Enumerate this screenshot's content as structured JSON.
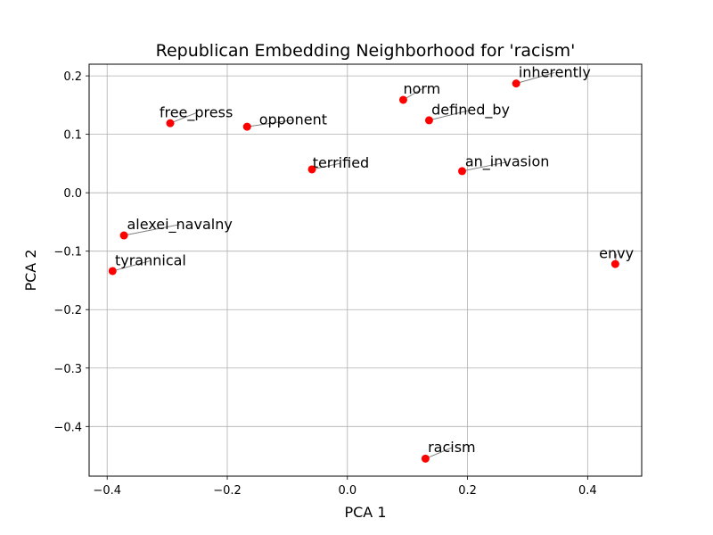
{
  "chart_data": {
    "type": "scatter",
    "title": "Republican Embedding Neighborhood for 'racism'",
    "xlabel": "PCA 1",
    "ylabel": "PCA 2",
    "xlim": [
      -0.43,
      0.49
    ],
    "ylim": [
      -0.485,
      0.22
    ],
    "xticks": [
      -0.4,
      -0.2,
      0.0,
      0.2,
      0.4
    ],
    "xtick_labels": [
      "−0.4",
      "−0.2",
      "0.0",
      "0.2",
      "0.4"
    ],
    "yticks": [
      0.2,
      0.1,
      0.0,
      -0.1,
      -0.2,
      -0.3,
      -0.4
    ],
    "ytick_labels": [
      "0.2",
      "0.1",
      "0.0",
      "−0.1",
      "−0.2",
      "−0.3",
      "−0.4"
    ],
    "grid": true,
    "point_color": "#ff0000",
    "leader_color": "#808080",
    "points": [
      {
        "label": "inherently",
        "x": 0.281,
        "y": 0.187,
        "lx": 0.285,
        "ly": 0.198
      },
      {
        "label": "norm",
        "x": 0.093,
        "y": 0.159,
        "lx": 0.093,
        "ly": 0.17
      },
      {
        "label": "defined_by",
        "x": 0.136,
        "y": 0.124,
        "lx": 0.14,
        "ly": 0.134
      },
      {
        "label": "free_press",
        "x": -0.295,
        "y": 0.119,
        "lx": -0.313,
        "ly": 0.129
      },
      {
        "label": "opponent",
        "x": -0.167,
        "y": 0.113,
        "lx": -0.147,
        "ly": 0.117
      },
      {
        "label": "terrified",
        "x": -0.059,
        "y": 0.04,
        "lx": -0.058,
        "ly": 0.043
      },
      {
        "label": "an_invasion",
        "x": 0.191,
        "y": 0.037,
        "lx": 0.196,
        "ly": 0.045
      },
      {
        "label": "alexei_navalny",
        "x": -0.372,
        "y": -0.073,
        "lx": -0.367,
        "ly": -0.062
      },
      {
        "label": "tyrannical",
        "x": -0.391,
        "y": -0.134,
        "lx": -0.387,
        "ly": -0.124
      },
      {
        "label": "envy",
        "x": 0.446,
        "y": -0.122,
        "lx": 0.419,
        "ly": -0.112
      },
      {
        "label": "racism",
        "x": 0.13,
        "y": -0.455,
        "lx": 0.134,
        "ly": -0.444
      }
    ]
  }
}
